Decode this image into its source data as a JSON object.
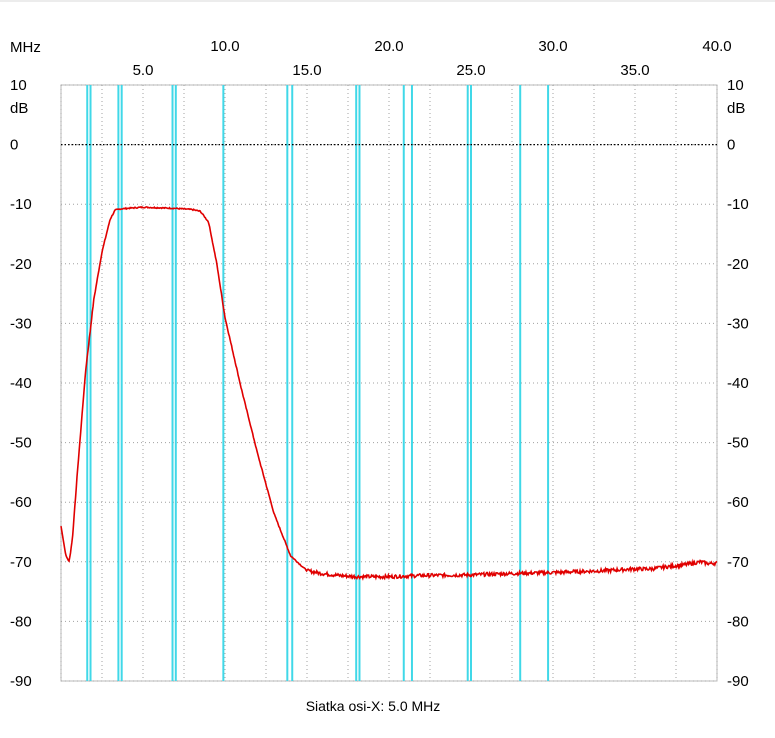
{
  "chart_data": {
    "type": "line",
    "x_unit_label": "MHz",
    "y_unit_label": "dB",
    "xlim": [
      0,
      40
    ],
    "ylim": [
      -90,
      10
    ],
    "x_ticks_upper": [
      "10.0",
      "20.0",
      "30.0",
      "40.0"
    ],
    "x_ticks_lower": [
      "5.0",
      "15.0",
      "25.0",
      "35.0"
    ],
    "y_ticks": [
      "10",
      "0",
      "-10",
      "-20",
      "-30",
      "-40",
      "-50",
      "-60",
      "-70",
      "-80",
      "-90"
    ],
    "xlabel": "Siatka osi-X: 5.0 MHz",
    "reference_line_db": 0,
    "grid": true,
    "colors": {
      "trace": "#e00000",
      "markers": "#40d8e8",
      "grid": "#a0a0a0"
    },
    "marker_lines_mhz": [
      1.6,
      1.8,
      3.5,
      3.7,
      6.8,
      7.0,
      9.9,
      13.8,
      14.1,
      18.0,
      18.2,
      20.9,
      21.4,
      24.8,
      25.0,
      28.0,
      29.7
    ],
    "series": [
      {
        "x": [
          0.0,
          0.3,
          0.5,
          0.7,
          1.0,
          1.5,
          2.0,
          2.5,
          3.0,
          3.3,
          3.6,
          4.0,
          5.0,
          6.0,
          7.0,
          8.0,
          8.5,
          9.0,
          9.5,
          10.0,
          11.0,
          12.0,
          13.0,
          14.0,
          15.0,
          16.0,
          17.0,
          18.0,
          20.0,
          22.0,
          25.0,
          27.0,
          30.0,
          33.0,
          35.0,
          36.0,
          37.0,
          38.0,
          39.0,
          39.5,
          40.0
        ],
        "y": [
          -64,
          -69,
          -70,
          -66,
          -55,
          -38,
          -26,
          -18,
          -12.5,
          -11,
          -10.8,
          -10.7,
          -10.5,
          -10.6,
          -10.7,
          -10.9,
          -11.2,
          -13,
          -20,
          -29,
          -41,
          -52,
          -62,
          -69,
          -71.5,
          -72,
          -72.3,
          -72.5,
          -72.5,
          -72.3,
          -72.2,
          -72,
          -71.8,
          -71.5,
          -71.2,
          -71.2,
          -70.8,
          -70.5,
          -70,
          -70.3,
          -70.2
        ]
      }
    ]
  }
}
